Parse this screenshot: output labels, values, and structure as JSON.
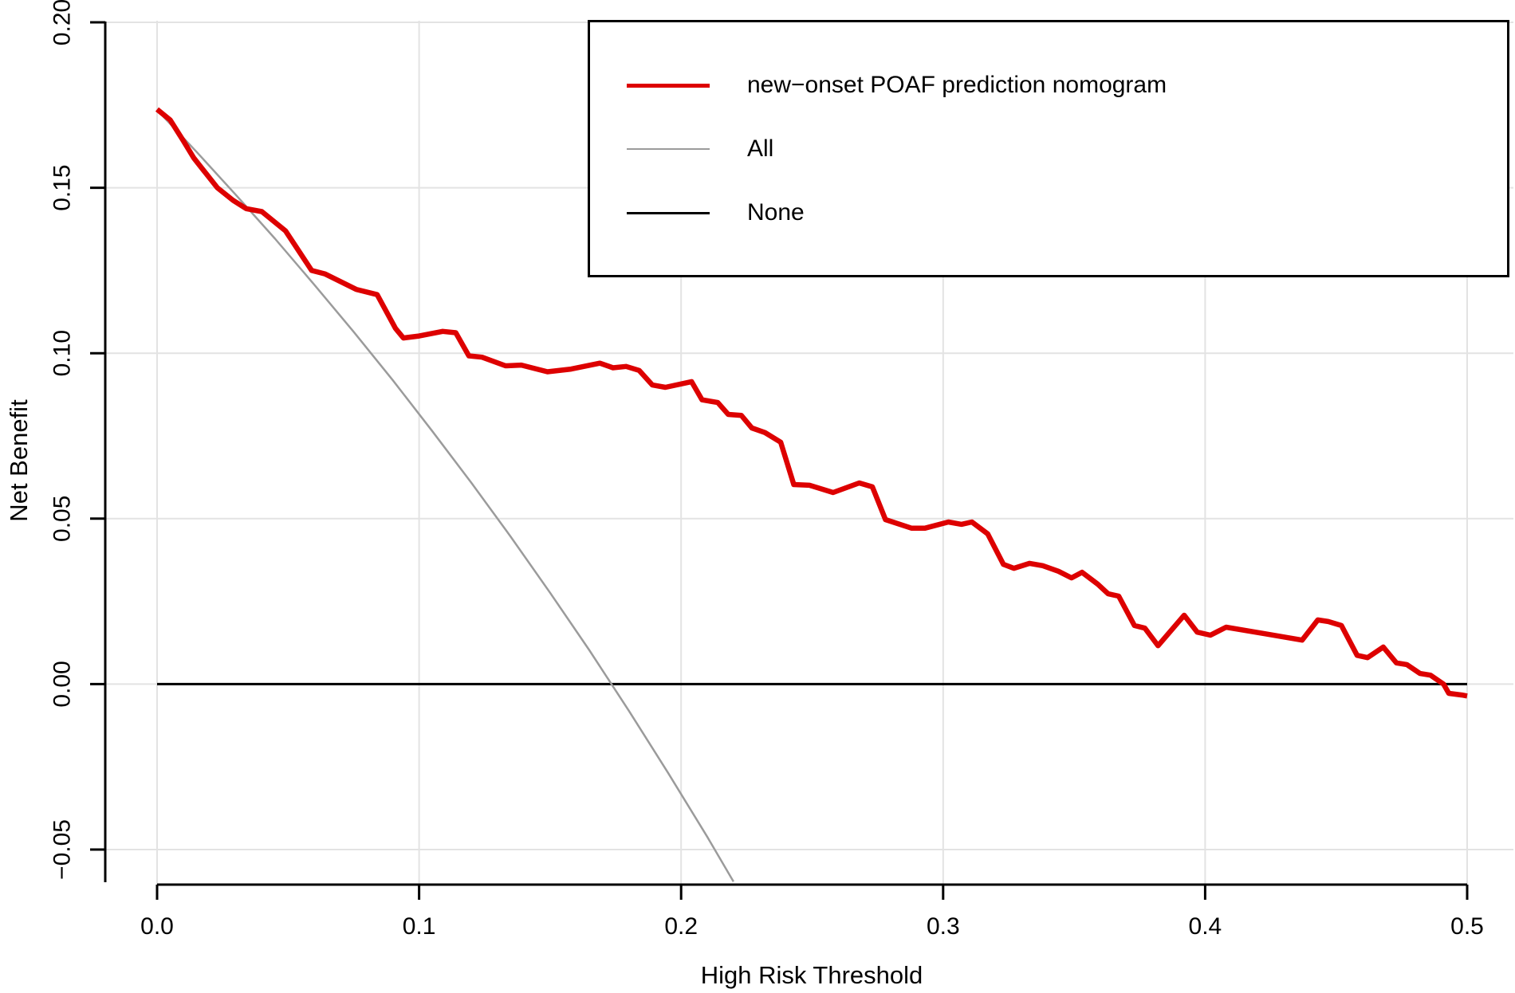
{
  "colors": {
    "background": "#ffffff",
    "grid": "#e3e3e3",
    "axis": "#000000",
    "text": "#000000",
    "legend_border": "#000000",
    "nomogram_red": "#dd0000",
    "all_gray": "#9b9b9b",
    "none_black": "#000000"
  },
  "chart_data": {
    "type": "line",
    "title": "",
    "xlabel": "High Risk Threshold",
    "ylabel": "Net Benefit",
    "xlim": [
      0,
      0.5
    ],
    "ylim": [
      -0.061,
      0.202
    ],
    "grid": true,
    "legend_position": "top-right",
    "x_ticks": [
      0,
      0.1,
      0.2,
      0.3,
      0.4,
      0.5
    ],
    "x_tick_labels": [
      "0.0",
      "0.1",
      "0.2",
      "0.3",
      "0.4",
      "0.5"
    ],
    "y_ticks": [
      0.2,
      0.15,
      0.1,
      0.05,
      0.0,
      -0.05
    ],
    "y_tick_labels": [
      "0.20",
      "0.15",
      "0.10",
      "0.05",
      "0.00",
      "−0.05"
    ],
    "series": [
      {
        "name": "new−onset POAF prediction nomogram",
        "color": "#dd0000",
        "line_width": 6.5,
        "legend_line_width": 5,
        "points": [
          [
            0.0,
            0.1737
          ],
          [
            0.005,
            0.1705
          ],
          [
            0.01,
            0.1642
          ],
          [
            0.014,
            0.159
          ],
          [
            0.018,
            0.155
          ],
          [
            0.023,
            0.15
          ],
          [
            0.029,
            0.1462
          ],
          [
            0.034,
            0.1437
          ],
          [
            0.04,
            0.1428
          ],
          [
            0.049,
            0.137
          ],
          [
            0.059,
            0.125
          ],
          [
            0.064,
            0.124
          ],
          [
            0.076,
            0.1193
          ],
          [
            0.084,
            0.1177
          ],
          [
            0.091,
            0.1075
          ],
          [
            0.094,
            0.1046
          ],
          [
            0.1,
            0.1052
          ],
          [
            0.109,
            0.1066
          ],
          [
            0.114,
            0.1062
          ],
          [
            0.119,
            0.0992
          ],
          [
            0.124,
            0.0988
          ],
          [
            0.133,
            0.0962
          ],
          [
            0.139,
            0.0964
          ],
          [
            0.149,
            0.0944
          ],
          [
            0.158,
            0.0952
          ],
          [
            0.169,
            0.097
          ],
          [
            0.174,
            0.0956
          ],
          [
            0.179,
            0.096
          ],
          [
            0.184,
            0.0948
          ],
          [
            0.189,
            0.0904
          ],
          [
            0.194,
            0.0897
          ],
          [
            0.204,
            0.0914
          ],
          [
            0.208,
            0.0859
          ],
          [
            0.214,
            0.0851
          ],
          [
            0.218,
            0.0815
          ],
          [
            0.223,
            0.0812
          ],
          [
            0.227,
            0.0774
          ],
          [
            0.232,
            0.076
          ],
          [
            0.238,
            0.0731
          ],
          [
            0.243,
            0.0603
          ],
          [
            0.249,
            0.0601
          ],
          [
            0.258,
            0.0579
          ],
          [
            0.268,
            0.0608
          ],
          [
            0.273,
            0.0596
          ],
          [
            0.278,
            0.0497
          ],
          [
            0.288,
            0.0471
          ],
          [
            0.293,
            0.0471
          ],
          [
            0.302,
            0.049
          ],
          [
            0.307,
            0.0483
          ],
          [
            0.311,
            0.049
          ],
          [
            0.317,
            0.0454
          ],
          [
            0.323,
            0.0362
          ],
          [
            0.327,
            0.035
          ],
          [
            0.333,
            0.0365
          ],
          [
            0.338,
            0.0358
          ],
          [
            0.344,
            0.0341
          ],
          [
            0.349,
            0.0321
          ],
          [
            0.353,
            0.0338
          ],
          [
            0.359,
            0.0302
          ],
          [
            0.363,
            0.0273
          ],
          [
            0.367,
            0.0266
          ],
          [
            0.373,
            0.0177
          ],
          [
            0.377,
            0.0169
          ],
          [
            0.382,
            0.0116
          ],
          [
            0.392,
            0.0208
          ],
          [
            0.397,
            0.0157
          ],
          [
            0.402,
            0.0148
          ],
          [
            0.408,
            0.0172
          ],
          [
            0.423,
            0.0152
          ],
          [
            0.437,
            0.0133
          ],
          [
            0.443,
            0.0194
          ],
          [
            0.447,
            0.0189
          ],
          [
            0.452,
            0.0177
          ],
          [
            0.458,
            0.0087
          ],
          [
            0.462,
            0.008
          ],
          [
            0.468,
            0.0112
          ],
          [
            0.473,
            0.0064
          ],
          [
            0.477,
            0.0059
          ],
          [
            0.482,
            0.0032
          ],
          [
            0.486,
            0.0027
          ],
          [
            0.491,
            0.0
          ],
          [
            0.493,
            -0.0028
          ],
          [
            0.498,
            -0.0033
          ],
          [
            0.5,
            -0.0036
          ]
        ]
      },
      {
        "name": "All",
        "color": "#9b9b9b",
        "line_width": 2.5,
        "legend_line_width": 2.5,
        "points": [
          [
            0.0,
            0.1735
          ],
          [
            0.015,
            0.1609
          ],
          [
            0.03,
            0.1479
          ],
          [
            0.045,
            0.1346
          ],
          [
            0.06,
            0.1207
          ],
          [
            0.075,
            0.1065
          ],
          [
            0.09,
            0.0918
          ],
          [
            0.105,
            0.0765
          ],
          [
            0.12,
            0.0608
          ],
          [
            0.135,
            0.0445
          ],
          [
            0.15,
            0.0276
          ],
          [
            0.165,
            0.0102
          ],
          [
            0.18,
            -0.008
          ],
          [
            0.195,
            -0.0268
          ],
          [
            0.21,
            -0.0462
          ],
          [
            0.22,
            -0.0597
          ]
        ]
      },
      {
        "name": "None",
        "color": "#000000",
        "line_width": 3,
        "legend_line_width": 3,
        "points": [
          [
            0.0,
            0.0
          ],
          [
            0.5,
            0.0
          ]
        ]
      }
    ]
  }
}
